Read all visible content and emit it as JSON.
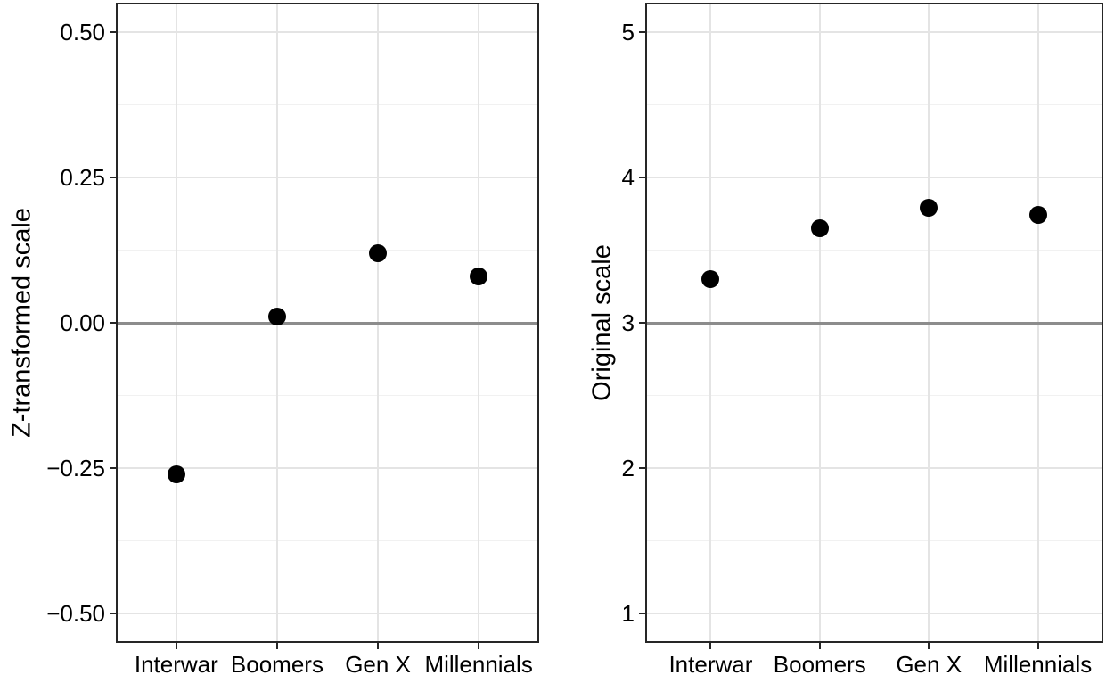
{
  "figure": {
    "background": "#ffffff",
    "text_color": "#000000",
    "colors": {
      "point": "#000000",
      "grid_major": "#e4e4e4",
      "grid_minor": "#f1f1f1",
      "reference_line": "#8c8c8c",
      "panel_border": "#262626",
      "tick_mark": "#262626"
    }
  },
  "chart_data": [
    {
      "type": "scatter",
      "panel": "left",
      "title": "",
      "xlabel": "",
      "ylabel": "Z-transformed scale",
      "categories": [
        "Interwar",
        "Boomers",
        "Gen X",
        "Millennials"
      ],
      "values": [
        -0.26,
        0.01,
        0.12,
        0.08
      ],
      "ylim": [
        -0.55,
        0.55
      ],
      "yticks": [
        {
          "value": 0.5,
          "label": "0.50"
        },
        {
          "value": 0.25,
          "label": "0.25"
        },
        {
          "value": 0,
          "label": "0.00"
        },
        {
          "value": -0.25,
          "label": "−0.25"
        },
        {
          "value": -0.5,
          "label": "−0.50"
        }
      ],
      "minor_yticks": [
        0.375,
        0.125,
        -0.125,
        -0.375
      ],
      "reference_line": 0,
      "grid": "major+minor",
      "legend": "none"
    },
    {
      "type": "scatter",
      "panel": "right",
      "title": "",
      "xlabel": "",
      "ylabel": "Original scale",
      "categories": [
        "Interwar",
        "Boomers",
        "Gen X",
        "Millennials"
      ],
      "values": [
        3.3,
        3.65,
        3.79,
        3.74
      ],
      "ylim": [
        0.8,
        5.2
      ],
      "yticks": [
        {
          "value": 5,
          "label": "5"
        },
        {
          "value": 4,
          "label": "4"
        },
        {
          "value": 3,
          "label": "3"
        },
        {
          "value": 2,
          "label": "2"
        },
        {
          "value": 1,
          "label": "1"
        }
      ],
      "minor_yticks": [
        4.5,
        3.5,
        2.5,
        1.5
      ],
      "reference_line": 3,
      "grid": "major+minor",
      "legend": "none"
    }
  ]
}
